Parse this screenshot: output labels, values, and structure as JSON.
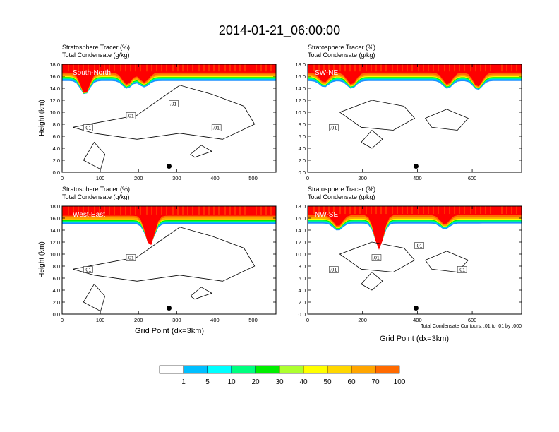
{
  "title": "2014-01-21_06:00:00",
  "footnote": "Total Condensate Contours: .01 to .01 by .000",
  "colorbar": {
    "labels": [
      "1",
      "5",
      "10",
      "20",
      "30",
      "40",
      "50",
      "60",
      "70",
      "100"
    ],
    "colors": [
      "#ffffff",
      "#1e90ff",
      "#00bfff",
      "#00ffff",
      "#00ff7f",
      "#00ee00",
      "#adff2f",
      "#ffff00",
      "#ffd700",
      "#ffa500",
      "#ff6a00",
      "#ff0000"
    ]
  },
  "chart_data": [
    {
      "type": "contour",
      "name": "South-North",
      "header": [
        "Stratosphere Tracer   (%)",
        "Total Condensate   (g/kg)"
      ],
      "ylabel": "Height (km)",
      "xlabel": "",
      "xlim": [
        0,
        560
      ],
      "ylim": [
        0,
        18
      ],
      "xticks": [
        "0",
        "100",
        "200",
        "300",
        "400",
        "500"
      ],
      "yticks": [
        "0.0",
        "2.0",
        "4.0",
        "6.0",
        "8.0",
        "10.0",
        "12.0",
        "14.0",
        "16.0",
        "18.0"
      ],
      "tracer_base_km": 16.0,
      "dips": [
        [
          60,
          13.0
        ],
        [
          170,
          14.3
        ],
        [
          215,
          14.6
        ]
      ],
      "contour_labels": [
        ".01",
        ".01",
        ".01",
        ".01"
      ],
      "marker": [
        280,
        1.0
      ]
    },
    {
      "type": "contour",
      "name": "SW-NE",
      "header": [
        "Stratosphere Tracer   (%)",
        "Total Condensate   (g/kg)"
      ],
      "ylabel": "",
      "xlabel": "",
      "xlim": [
        0,
        780
      ],
      "ylim": [
        0,
        18
      ],
      "xticks": [
        "0",
        "200",
        "400",
        "600"
      ],
      "yticks": [
        "0.0",
        "2.0",
        "4.0",
        "6.0",
        "8.0",
        "10.0",
        "12.0",
        "14.0",
        "16.0",
        "18.0"
      ],
      "tracer_base_km": 16.0,
      "dips": [
        [
          60,
          14.6
        ],
        [
          160,
          14.3
        ],
        [
          510,
          14.3
        ],
        [
          620,
          14.0
        ]
      ],
      "contour_labels": [
        ".01"
      ],
      "marker": [
        395,
        1.0
      ]
    },
    {
      "type": "contour",
      "name": "West-East",
      "header": [
        "Stratosphere Tracer   (%)",
        "Total Condensate   (g/kg)"
      ],
      "ylabel": "Height (km)",
      "xlabel": "Grid Point (dx=3km)",
      "xlim": [
        0,
        560
      ],
      "ylim": [
        0,
        18
      ],
      "xticks": [
        "0",
        "100",
        "200",
        "300",
        "400",
        "500"
      ],
      "yticks": [
        "0.0",
        "2.0",
        "4.0",
        "6.0",
        "8.0",
        "10.0",
        "12.0",
        "14.0",
        "16.0",
        "18.0"
      ],
      "tracer_base_km": 15.8,
      "dips": [
        [
          230,
          11.5
        ]
      ],
      "contour_labels": [
        ".01",
        ".01"
      ],
      "marker": [
        280,
        1.0
      ]
    },
    {
      "type": "contour",
      "name": "NW-SE",
      "header": [
        "Stratosphere Tracer   (%)",
        "Total Condensate   (g/kg)"
      ],
      "ylabel": "",
      "xlabel": "Grid Point (dx=3km)",
      "xlim": [
        0,
        780
      ],
      "ylim": [
        0,
        18
      ],
      "xticks": [
        "0",
        "200",
        "400",
        "600"
      ],
      "yticks": [
        "0.0",
        "2.0",
        "4.0",
        "6.0",
        "8.0",
        "10.0",
        "12.0",
        "14.0",
        "16.0",
        "18.0"
      ],
      "tracer_base_km": 15.9,
      "dips": [
        [
          260,
          11.0
        ],
        [
          110,
          14.3
        ],
        [
          500,
          14.6
        ]
      ],
      "contour_labels": [
        ".01",
        ".01",
        ".01",
        ".01"
      ],
      "marker": [
        395,
        1.0
      ]
    }
  ]
}
